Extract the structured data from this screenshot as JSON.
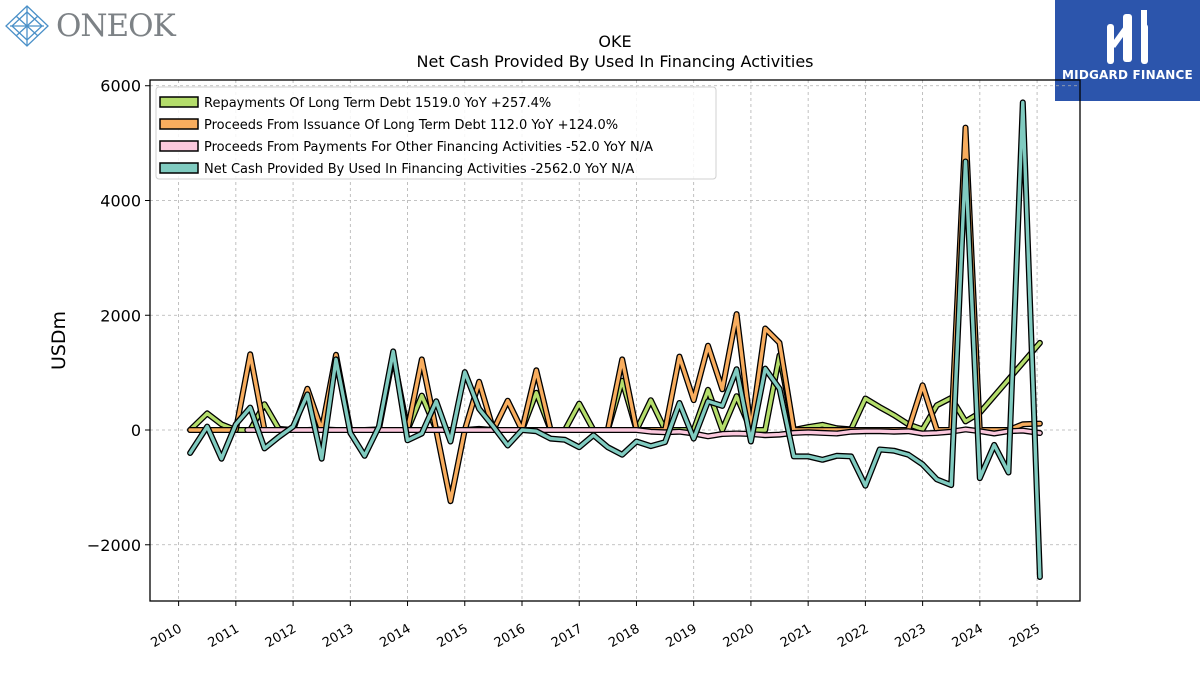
{
  "brand_left": {
    "name": "ONEOK"
  },
  "brand_right": {
    "name": "MIDGARD FINANCE"
  },
  "chart_data": {
    "type": "line",
    "title": "OKE",
    "subtitle": "Net Cash Provided By Used In Financing Activities",
    "ylabel": "USDm",
    "xlabel": "",
    "xlim": [
      2009.5,
      2025.75
    ],
    "ylim": [
      -2980,
      6100
    ],
    "yticks": [
      -2000,
      0,
      2000,
      4000,
      6000
    ],
    "ytick_labels": [
      "−2000",
      "0",
      "2000",
      "4000",
      "6000"
    ],
    "xticks": [
      2010,
      2011,
      2012,
      2013,
      2014,
      2015,
      2016,
      2017,
      2018,
      2019,
      2020,
      2021,
      2022,
      2023,
      2024,
      2025
    ],
    "grid": true,
    "legend_position": "top-left",
    "series": [
      {
        "name": "Repayments Of Long Term Debt  1519.0 YoY +257.4%",
        "color": "#b4dd6b",
        "points": [
          [
            2010.2,
            0
          ],
          [
            2010.5,
            290
          ],
          [
            2010.75,
            100
          ],
          [
            2011.0,
            0
          ],
          [
            2011.25,
            0
          ],
          [
            2011.5,
            450
          ],
          [
            2011.75,
            20
          ],
          [
            2012.0,
            0
          ],
          [
            2012.25,
            0
          ],
          [
            2012.5,
            10
          ],
          [
            2012.75,
            0
          ],
          [
            2013.0,
            0
          ],
          [
            2013.25,
            0
          ],
          [
            2013.5,
            10
          ],
          [
            2013.75,
            1300
          ],
          [
            2014.0,
            0
          ],
          [
            2014.25,
            600
          ],
          [
            2014.5,
            10
          ],
          [
            2014.75,
            0
          ],
          [
            2015.0,
            0
          ],
          [
            2015.25,
            20
          ],
          [
            2015.5,
            0
          ],
          [
            2015.75,
            0
          ],
          [
            2016.0,
            0
          ],
          [
            2016.25,
            650
          ],
          [
            2016.5,
            0
          ],
          [
            2016.75,
            0
          ],
          [
            2017.0,
            460
          ],
          [
            2017.25,
            0
          ],
          [
            2017.5,
            0
          ],
          [
            2017.75,
            860
          ],
          [
            2018.0,
            0
          ],
          [
            2018.25,
            520
          ],
          [
            2018.5,
            0
          ],
          [
            2018.75,
            0
          ],
          [
            2019.0,
            0
          ],
          [
            2019.25,
            700
          ],
          [
            2019.5,
            0
          ],
          [
            2019.75,
            590
          ],
          [
            2020.0,
            0
          ],
          [
            2020.25,
            0
          ],
          [
            2020.5,
            1300
          ],
          [
            2020.75,
            0
          ],
          [
            2021.0,
            50
          ],
          [
            2021.25,
            90
          ],
          [
            2021.5,
            30
          ],
          [
            2021.75,
            10
          ],
          [
            2022.0,
            550
          ],
          [
            2022.25,
            400
          ],
          [
            2022.5,
            260
          ],
          [
            2022.75,
            100
          ],
          [
            2023.0,
            10
          ],
          [
            2023.25,
            430
          ],
          [
            2023.5,
            560
          ],
          [
            2023.75,
            150
          ],
          [
            2024.0,
            300
          ],
          [
            2025.05,
            1519
          ]
        ]
      },
      {
        "name": "Proceeds From Issuance Of Long Term Debt  112.0 YoY +124.0%",
        "color": "#f8ad5e",
        "points": [
          [
            2010.2,
            0
          ],
          [
            2010.5,
            0
          ],
          [
            2010.75,
            0
          ],
          [
            2011.0,
            0
          ],
          [
            2011.25,
            1320
          ],
          [
            2011.5,
            0
          ],
          [
            2011.75,
            0
          ],
          [
            2012.0,
            0
          ],
          [
            2012.25,
            720
          ],
          [
            2012.5,
            0
          ],
          [
            2012.75,
            1310
          ],
          [
            2013.0,
            0
          ],
          [
            2013.25,
            0
          ],
          [
            2013.5,
            0
          ],
          [
            2013.75,
            0
          ],
          [
            2014.0,
            0
          ],
          [
            2014.25,
            1230
          ],
          [
            2014.5,
            0
          ],
          [
            2014.75,
            -1240
          ],
          [
            2015.0,
            0
          ],
          [
            2015.25,
            840
          ],
          [
            2015.5,
            0
          ],
          [
            2015.75,
            510
          ],
          [
            2016.0,
            0
          ],
          [
            2016.25,
            1040
          ],
          [
            2016.5,
            0
          ],
          [
            2016.75,
            0
          ],
          [
            2017.0,
            0
          ],
          [
            2017.25,
            0
          ],
          [
            2017.5,
            0
          ],
          [
            2017.75,
            1230
          ],
          [
            2018.0,
            0
          ],
          [
            2018.25,
            0
          ],
          [
            2018.5,
            0
          ],
          [
            2018.75,
            1280
          ],
          [
            2019.0,
            520
          ],
          [
            2019.25,
            1470
          ],
          [
            2019.5,
            710
          ],
          [
            2019.75,
            2020
          ],
          [
            2020.0,
            0
          ],
          [
            2020.25,
            1770
          ],
          [
            2020.5,
            1520
          ],
          [
            2020.75,
            0
          ],
          [
            2021.0,
            0
          ],
          [
            2021.25,
            0
          ],
          [
            2021.5,
            0
          ],
          [
            2021.75,
            0
          ],
          [
            2022.0,
            0
          ],
          [
            2022.25,
            0
          ],
          [
            2022.5,
            0
          ],
          [
            2022.75,
            0
          ],
          [
            2023.0,
            780
          ],
          [
            2023.25,
            0
          ],
          [
            2023.5,
            0
          ],
          [
            2023.75,
            5270
          ],
          [
            2024.0,
            0
          ],
          [
            2024.25,
            0
          ],
          [
            2024.5,
            0
          ],
          [
            2024.75,
            100
          ],
          [
            2025.05,
            112
          ]
        ]
      },
      {
        "name": "Proceeds From Payments For Other Financing Activities  -52.0 YoY N/A",
        "color": "#fbc8dd",
        "points": [
          [
            2011.2,
            0
          ],
          [
            2018.0,
            0
          ],
          [
            2018.25,
            -30
          ],
          [
            2018.5,
            -40
          ],
          [
            2018.75,
            -30
          ],
          [
            2019.0,
            -60
          ],
          [
            2019.25,
            -110
          ],
          [
            2019.5,
            -70
          ],
          [
            2019.75,
            -60
          ],
          [
            2020.0,
            -70
          ],
          [
            2020.25,
            -90
          ],
          [
            2020.5,
            -80
          ],
          [
            2020.75,
            -50
          ],
          [
            2021.0,
            -40
          ],
          [
            2021.25,
            -50
          ],
          [
            2021.5,
            -60
          ],
          [
            2021.75,
            -30
          ],
          [
            2022.0,
            -20
          ],
          [
            2022.25,
            -20
          ],
          [
            2022.5,
            -30
          ],
          [
            2022.75,
            -20
          ],
          [
            2023.0,
            -60
          ],
          [
            2023.25,
            -50
          ],
          [
            2023.5,
            -30
          ],
          [
            2023.75,
            10
          ],
          [
            2024.0,
            -20
          ],
          [
            2024.25,
            -60
          ],
          [
            2024.5,
            -20
          ],
          [
            2024.75,
            -10
          ],
          [
            2025.05,
            -52
          ]
        ]
      },
      {
        "name": "Net Cash Provided By Used In Financing Activities  -2562.0 YoY N/A",
        "color": "#80cbc0",
        "points": [
          [
            2010.2,
            -400
          ],
          [
            2010.5,
            60
          ],
          [
            2010.75,
            -500
          ],
          [
            2011.0,
            100
          ],
          [
            2011.25,
            390
          ],
          [
            2011.5,
            -320
          ],
          [
            2011.75,
            -120
          ],
          [
            2012.0,
            60
          ],
          [
            2012.25,
            620
          ],
          [
            2012.5,
            -500
          ],
          [
            2012.75,
            1230
          ],
          [
            2013.0,
            -50
          ],
          [
            2013.25,
            -450
          ],
          [
            2013.5,
            60
          ],
          [
            2013.75,
            1370
          ],
          [
            2014.0,
            -180
          ],
          [
            2014.25,
            -60
          ],
          [
            2014.5,
            500
          ],
          [
            2014.75,
            -200
          ],
          [
            2015.0,
            1010
          ],
          [
            2015.25,
            370
          ],
          [
            2015.5,
            60
          ],
          [
            2015.75,
            -270
          ],
          [
            2016.0,
            0
          ],
          [
            2016.25,
            -20
          ],
          [
            2016.5,
            -150
          ],
          [
            2016.75,
            -170
          ],
          [
            2017.0,
            -300
          ],
          [
            2017.25,
            -90
          ],
          [
            2017.5,
            -300
          ],
          [
            2017.75,
            -430
          ],
          [
            2018.0,
            -200
          ],
          [
            2018.25,
            -280
          ],
          [
            2018.5,
            -210
          ],
          [
            2018.75,
            470
          ],
          [
            2019.0,
            -150
          ],
          [
            2019.25,
            500
          ],
          [
            2019.5,
            420
          ],
          [
            2019.75,
            1060
          ],
          [
            2020.0,
            -200
          ],
          [
            2020.25,
            1070
          ],
          [
            2020.5,
            720
          ],
          [
            2020.75,
            -460
          ],
          [
            2021.0,
            -460
          ],
          [
            2021.25,
            -520
          ],
          [
            2021.5,
            -450
          ],
          [
            2021.75,
            -460
          ],
          [
            2022.0,
            -970
          ],
          [
            2022.25,
            -340
          ],
          [
            2022.5,
            -360
          ],
          [
            2022.75,
            -430
          ],
          [
            2023.0,
            -600
          ],
          [
            2023.25,
            -860
          ],
          [
            2023.5,
            -960
          ],
          [
            2023.75,
            4680
          ],
          [
            2024.0,
            -840
          ],
          [
            2024.25,
            -260
          ],
          [
            2024.5,
            -740
          ],
          [
            2024.75,
            5710
          ],
          [
            2025.05,
            -2562
          ]
        ]
      }
    ]
  }
}
